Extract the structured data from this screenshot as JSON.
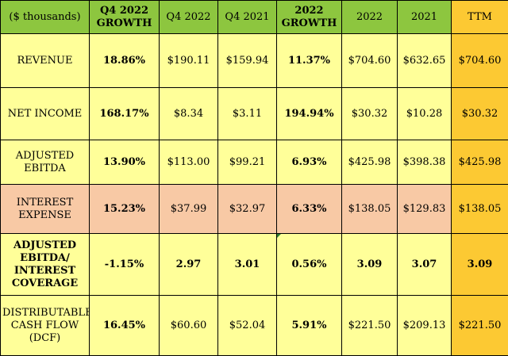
{
  "header": {
    "label": "($ thousands)",
    "q4_growth": [
      "Q4 2022",
      "GROWTH"
    ],
    "q4_2022": "Q4 2022",
    "q4_2021": "Q4 2021",
    "fy_growth": [
      "2022",
      "GROWTH"
    ],
    "fy_2022": "2022",
    "fy_2021": "2021",
    "ttm": "TTM"
  },
  "rows": [
    {
      "label": [
        "REVENUE"
      ],
      "q4_growth": "18.86%",
      "q4_2022": "$190.11",
      "q4_2021": "$159.94",
      "fy_growth": "11.37%",
      "fy_2022": "$704.60",
      "fy_2021": "$632.65",
      "ttm": "$704.60"
    },
    {
      "label": [
        "NET INCOME"
      ],
      "q4_growth": "168.17%",
      "q4_2022": "$8.34",
      "q4_2021": "$3.11",
      "fy_growth": "194.94%",
      "fy_2022": "$30.32",
      "fy_2021": "$10.28",
      "ttm": "$30.32"
    },
    {
      "label": [
        "ADJUSTED",
        "EBITDA"
      ],
      "q4_growth": "13.90%",
      "q4_2022": "$113.00",
      "q4_2021": "$99.21",
      "fy_growth": "6.93%",
      "fy_2022": "$425.98",
      "fy_2021": "$398.38",
      "ttm": "$425.98"
    },
    {
      "label": [
        "INTEREST",
        "EXPENSE"
      ],
      "q4_growth": "15.23%",
      "q4_2022": "$37.99",
      "q4_2021": "$32.97",
      "fy_growth": "6.33%",
      "fy_2022": "$138.05",
      "fy_2021": "$129.83",
      "ttm": "$138.05"
    },
    {
      "label": [
        "ADJUSTED",
        "EBITDA/",
        "INTEREST",
        "COVERAGE"
      ],
      "q4_growth": "-1.15%",
      "q4_2022": "2.97",
      "q4_2021": "3.01",
      "fy_growth": "0.56%",
      "fy_2022": "3.09",
      "fy_2021": "3.07",
      "ttm": "3.09"
    },
    {
      "label": [
        "DISTRIBUTABLE",
        "CASH FLOW",
        "(DCF)"
      ],
      "q4_growth": "16.45%",
      "q4_2022": "$60.60",
      "q4_2021": "$52.04",
      "fy_growth": "5.91%",
      "fy_2022": "$221.50",
      "fy_2021": "$209.13",
      "ttm": "$221.50"
    }
  ],
  "colors": {
    "header_bg": "#8dc63f",
    "row_bg": "#ffff99",
    "interest_row_bg": "#f8c9a5",
    "ttm_bg": "#fcc933",
    "flag": "#2e7d32"
  }
}
